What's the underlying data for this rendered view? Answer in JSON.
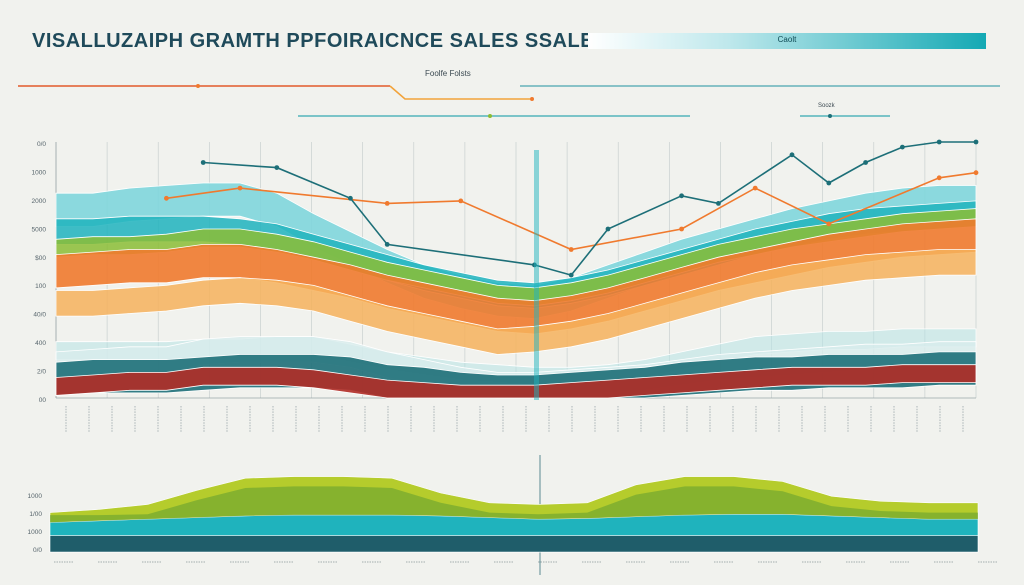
{
  "header": {
    "title": "VISALLUZAIPH GRAMTH PPFOIRAICNCE SALES SSALE",
    "pill_label": "Caolt"
  },
  "legends": {
    "top": "Foolfe Folsts",
    "right": "Soozk"
  },
  "colors": {
    "teal_dark": "#1d6f78",
    "teal": "#1fb3bd",
    "teal_light": "#7fd6dc",
    "orange": "#f07a2e",
    "orange_light": "#f6b25c",
    "red": "#b02c26",
    "green": "#8bbd35",
    "lime": "#b5cc2c",
    "navy_teal": "#1f5d6a",
    "bg": "#f1f2ee"
  },
  "chart_data": [
    {
      "type": "area",
      "title": "",
      "xlabel": "",
      "ylabel": "",
      "ylim": [
        0,
        100
      ],
      "x": [
        0,
        1,
        2,
        3,
        4,
        5,
        6,
        7,
        8,
        9,
        10,
        11,
        12,
        13,
        14,
        15,
        16,
        17,
        18,
        19,
        20,
        21,
        22,
        23,
        24,
        25
      ],
      "ytick_labels": [
        "0/0",
        "1000",
        "2000",
        "5000",
        "$00",
        "100",
        "40/0",
        "400",
        "2/0",
        "00"
      ],
      "series": [
        {
          "values": [
            22,
            22,
            22,
            22,
            23,
            23,
            24,
            24,
            21,
            18,
            16,
            14,
            13,
            12,
            12,
            13,
            15,
            18,
            21,
            24,
            25,
            26,
            26,
            27,
            27,
            27
          ]
        },
        {
          "values": [
            18,
            19,
            20,
            20,
            23,
            24,
            24,
            24,
            22,
            18,
            15,
            12,
            10,
            10,
            11,
            12,
            13,
            15,
            17,
            18,
            19,
            20,
            21,
            21,
            22,
            22
          ]
        },
        {
          "values": [
            14,
            15,
            15,
            15,
            16,
            17,
            17,
            17,
            16,
            13,
            12,
            10,
            9,
            9,
            10,
            11,
            12,
            14,
            15,
            16,
            16,
            17,
            17,
            17,
            18,
            18
          ]
        },
        {
          "values": [
            8,
            9,
            10,
            10,
            12,
            12,
            12,
            11,
            9,
            7,
            6,
            5,
            5,
            5,
            6,
            7,
            8,
            9,
            10,
            11,
            12,
            12,
            12,
            13,
            13,
            13
          ]
        },
        {
          "values": [
            42,
            42,
            43,
            44,
            46,
            47,
            46,
            44,
            40,
            36,
            33,
            30,
            27,
            28,
            30,
            33,
            37,
            41,
            45,
            49,
            52,
            54,
            56,
            57,
            58,
            58
          ]
        },
        {
          "values": [
            56,
            57,
            58,
            58,
            60,
            60,
            58,
            55,
            52,
            48,
            45,
            42,
            39,
            38,
            40,
            43,
            47,
            51,
            55,
            58,
            61,
            64,
            66,
            68,
            69,
            70
          ]
        },
        {
          "values": [
            62,
            63,
            63,
            64,
            66,
            66,
            64,
            61,
            57,
            53,
            50,
            47,
            44,
            43,
            45,
            48,
            52,
            56,
            60,
            63,
            66,
            68,
            70,
            72,
            73,
            74
          ]
        },
        {
          "values": [
            70,
            70,
            71,
            71,
            71,
            70,
            68,
            64,
            60,
            56,
            52,
            49,
            46,
            45,
            47,
            50,
            54,
            58,
            62,
            66,
            69,
            72,
            74,
            75,
            76,
            77
          ]
        },
        {
          "values": [
            80,
            80,
            82,
            83,
            84,
            84,
            80,
            72,
            65,
            58,
            52,
            48,
            45,
            44,
            47,
            52,
            57,
            62,
            66,
            70,
            74,
            77,
            80,
            82,
            83,
            83
          ]
        }
      ],
      "line_series": [
        {
          "x": [
            3,
            5,
            9,
            11,
            14,
            17,
            19,
            21,
            24,
            25
          ],
          "values": [
            78,
            82,
            76,
            77,
            58,
            66,
            82,
            68,
            86,
            88
          ]
        },
        {
          "x": [
            4,
            6,
            8,
            9,
            13,
            14,
            15,
            17,
            18,
            20,
            21,
            22,
            23,
            24,
            25
          ],
          "values": [
            92,
            90,
            78,
            60,
            52,
            48,
            66,
            79,
            76,
            95,
            84,
            92,
            98,
            100,
            100
          ]
        }
      ]
    },
    {
      "type": "area",
      "title": "",
      "xlabel": "",
      "ylabel": "",
      "ylim": [
        0,
        100
      ],
      "x": [
        0,
        1,
        2,
        3,
        4,
        5,
        6,
        7,
        8,
        9,
        10,
        11,
        12,
        13,
        14,
        15,
        16,
        17,
        18,
        19
      ],
      "ytick_labels": [
        "1000",
        "1/00",
        "1000",
        "0/0"
      ],
      "series": [
        {
          "values": [
            20,
            20,
            20,
            20,
            20,
            20,
            20,
            20,
            20,
            20,
            20,
            20,
            20,
            20,
            20,
            20,
            20,
            20,
            20,
            20
          ]
        },
        {
          "values": [
            36,
            38,
            40,
            42,
            44,
            45,
            45,
            45,
            44,
            42,
            40,
            41,
            43,
            45,
            46,
            46,
            44,
            42,
            40,
            40
          ]
        },
        {
          "values": [
            48,
            52,
            58,
            75,
            90,
            92,
            92,
            90,
            72,
            60,
            58,
            60,
            82,
            92,
            92,
            86,
            68,
            62,
            60,
            60
          ]
        }
      ]
    }
  ]
}
